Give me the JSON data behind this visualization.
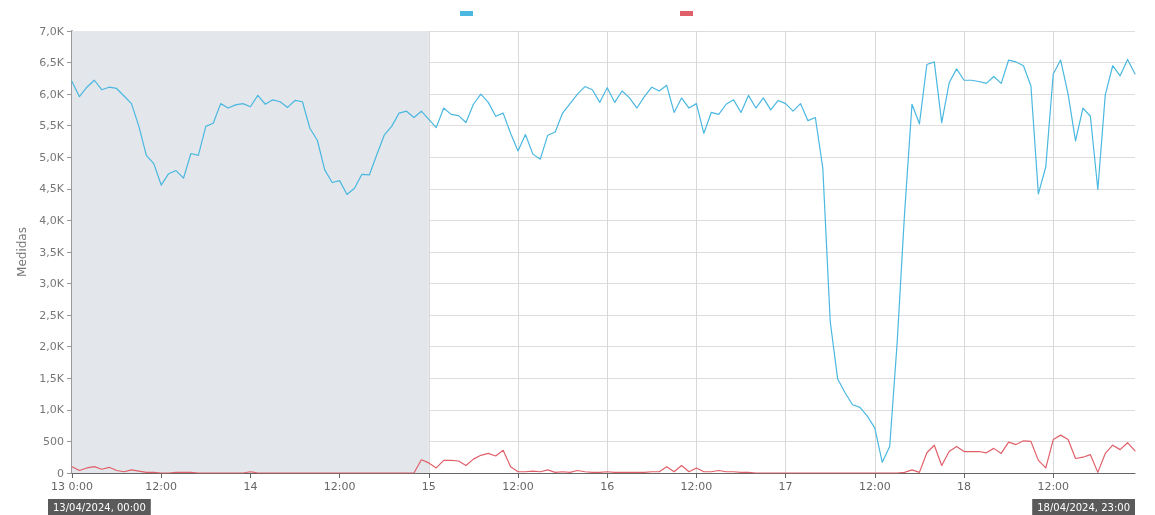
{
  "chart_data": {
    "type": "line",
    "ylabel": "Medidas",
    "x": [
      "2024-04-13T00:00",
      "2024-04-13T01:00",
      "2024-04-13T02:00",
      "2024-04-13T03:00",
      "2024-04-13T04:00",
      "2024-04-13T05:00",
      "2024-04-13T06:00",
      "2024-04-13T07:00",
      "2024-04-13T08:00",
      "2024-04-13T09:00",
      "2024-04-13T10:00",
      "2024-04-13T11:00",
      "2024-04-13T12:00",
      "2024-04-13T13:00",
      "2024-04-13T14:00",
      "2024-04-13T15:00",
      "2024-04-13T16:00",
      "2024-04-13T17:00",
      "2024-04-13T18:00",
      "2024-04-13T19:00",
      "2024-04-13T20:00",
      "2024-04-13T21:00",
      "2024-04-13T22:00",
      "2024-04-13T23:00",
      "2024-04-14T00:00",
      "2024-04-14T01:00",
      "2024-04-14T02:00",
      "2024-04-14T03:00",
      "2024-04-14T04:00",
      "2024-04-14T05:00",
      "2024-04-14T06:00",
      "2024-04-14T07:00",
      "2024-04-14T08:00",
      "2024-04-14T09:00",
      "2024-04-14T10:00",
      "2024-04-14T11:00",
      "2024-04-14T12:00",
      "2024-04-14T13:00",
      "2024-04-14T14:00",
      "2024-04-14T15:00",
      "2024-04-14T16:00",
      "2024-04-14T17:00",
      "2024-04-14T18:00",
      "2024-04-14T19:00",
      "2024-04-14T20:00",
      "2024-04-14T21:00",
      "2024-04-14T22:00",
      "2024-04-14T23:00",
      "2024-04-15T00:00",
      "2024-04-15T01:00",
      "2024-04-15T02:00",
      "2024-04-15T03:00",
      "2024-04-15T04:00",
      "2024-04-15T05:00",
      "2024-04-15T06:00",
      "2024-04-15T07:00",
      "2024-04-15T08:00",
      "2024-04-15T09:00",
      "2024-04-15T10:00",
      "2024-04-15T11:00",
      "2024-04-15T12:00",
      "2024-04-15T13:00",
      "2024-04-15T14:00",
      "2024-04-15T15:00",
      "2024-04-15T16:00",
      "2024-04-15T17:00",
      "2024-04-15T18:00",
      "2024-04-15T19:00",
      "2024-04-15T20:00",
      "2024-04-15T21:00",
      "2024-04-15T22:00",
      "2024-04-15T23:00",
      "2024-04-16T00:00",
      "2024-04-16T01:00",
      "2024-04-16T02:00",
      "2024-04-16T03:00",
      "2024-04-16T04:00",
      "2024-04-16T05:00",
      "2024-04-16T06:00",
      "2024-04-16T07:00",
      "2024-04-16T08:00",
      "2024-04-16T09:00",
      "2024-04-16T10:00",
      "2024-04-16T11:00",
      "2024-04-16T12:00",
      "2024-04-16T13:00",
      "2024-04-16T14:00",
      "2024-04-16T15:00",
      "2024-04-16T16:00",
      "2024-04-16T17:00",
      "2024-04-16T18:00",
      "2024-04-16T19:00",
      "2024-04-16T20:00",
      "2024-04-16T21:00",
      "2024-04-16T22:00",
      "2024-04-16T23:00",
      "2024-04-17T00:00",
      "2024-04-17T01:00",
      "2024-04-17T02:00",
      "2024-04-17T03:00",
      "2024-04-17T04:00",
      "2024-04-17T05:00",
      "2024-04-17T06:00",
      "2024-04-17T07:00",
      "2024-04-17T08:00",
      "2024-04-17T09:00",
      "2024-04-17T10:00",
      "2024-04-17T11:00",
      "2024-04-17T12:00",
      "2024-04-17T13:00",
      "2024-04-17T14:00",
      "2024-04-17T15:00",
      "2024-04-17T16:00",
      "2024-04-17T17:00",
      "2024-04-17T18:00",
      "2024-04-17T19:00",
      "2024-04-17T20:00",
      "2024-04-17T21:00",
      "2024-04-17T22:00",
      "2024-04-17T23:00",
      "2024-04-18T00:00",
      "2024-04-18T01:00",
      "2024-04-18T02:00",
      "2024-04-18T03:00",
      "2024-04-18T04:00",
      "2024-04-18T05:00",
      "2024-04-18T06:00",
      "2024-04-18T07:00",
      "2024-04-18T08:00",
      "2024-04-18T09:00",
      "2024-04-18T10:00",
      "2024-04-18T11:00",
      "2024-04-18T12:00",
      "2024-04-18T13:00",
      "2024-04-18T14:00",
      "2024-04-18T15:00",
      "2024-04-18T16:00",
      "2024-04-18T17:00",
      "2024-04-18T18:00",
      "2024-04-18T19:00",
      "2024-04-18T20:00",
      "2024-04-18T21:00",
      "2024-04-18T22:00",
      "2024-04-18T23:00"
    ],
    "series": [
      {
        "color": "#4ab8e0",
        "values": [
          6200,
          5960,
          6110,
          6220,
          6070,
          6110,
          6090,
          5970,
          5850,
          5490,
          5030,
          4900,
          4560,
          4740,
          4790,
          4670,
          5060,
          5030,
          5490,
          5540,
          5850,
          5780,
          5830,
          5850,
          5800,
          5980,
          5840,
          5910,
          5880,
          5790,
          5900,
          5880,
          5460,
          5270,
          4800,
          4600,
          4630,
          4410,
          4510,
          4730,
          4720,
          5040,
          5350,
          5490,
          5700,
          5730,
          5630,
          5730,
          5600,
          5470,
          5780,
          5680,
          5660,
          5550,
          5840,
          6000,
          5870,
          5650,
          5700,
          5380,
          5100,
          5360,
          5050,
          4970,
          5350,
          5400,
          5700,
          5850,
          6000,
          6120,
          6070,
          5870,
          6100,
          5870,
          6050,
          5940,
          5780,
          5960,
          6110,
          6050,
          6140,
          5710,
          5940,
          5780,
          5850,
          5380,
          5710,
          5680,
          5840,
          5910,
          5710,
          5980,
          5780,
          5940,
          5750,
          5900,
          5850,
          5730,
          5850,
          5580,
          5630,
          4830,
          2400,
          1490,
          1270,
          1080,
          1040,
          900,
          710,
          170,
          420,
          2060,
          4110,
          5840,
          5530,
          6470,
          6510,
          5550,
          6180,
          6400,
          6220,
          6220,
          6200,
          6170,
          6280,
          6170,
          6540,
          6510,
          6450,
          6130,
          4420,
          4850,
          6320,
          6540,
          6000,
          5260,
          5780,
          5650,
          4490,
          5990,
          6450,
          6290,
          6550,
          6320
        ]
      },
      {
        "color": "#e0606a",
        "values": [
          100,
          40,
          80,
          100,
          60,
          90,
          40,
          20,
          50,
          30,
          10,
          10,
          0,
          0,
          10,
          10,
          10,
          0,
          0,
          0,
          0,
          0,
          0,
          0,
          20,
          0,
          0,
          0,
          0,
          0,
          0,
          0,
          0,
          0,
          0,
          0,
          0,
          0,
          0,
          0,
          0,
          0,
          0,
          0,
          0,
          0,
          0,
          210,
          160,
          80,
          200,
          200,
          190,
          120,
          220,
          280,
          310,
          270,
          360,
          100,
          20,
          20,
          30,
          20,
          50,
          10,
          20,
          10,
          40,
          20,
          10,
          10,
          20,
          10,
          10,
          10,
          10,
          10,
          20,
          20,
          100,
          20,
          120,
          20,
          80,
          20,
          20,
          40,
          20,
          20,
          10,
          10,
          0,
          0,
          0,
          0,
          0,
          0,
          0,
          0,
          0,
          0,
          0,
          0,
          0,
          0,
          0,
          0,
          0,
          0,
          0,
          0,
          10,
          50,
          10,
          320,
          440,
          120,
          340,
          420,
          340,
          340,
          340,
          320,
          390,
          310,
          490,
          450,
          510,
          500,
          200,
          80,
          530,
          600,
          530,
          230,
          250,
          290,
          10,
          310,
          440,
          370,
          480,
          350
        ]
      }
    ],
    "xlim": [
      "2024-04-13T00:00",
      "2024-04-18T23:00"
    ],
    "xticks": [
      {
        "value": "2024-04-13T00:00",
        "label": "13 0:00"
      },
      {
        "value": "2024-04-13T12:00",
        "label": "12:00"
      },
      {
        "value": "2024-04-14T00:00",
        "label": "14"
      },
      {
        "value": "2024-04-14T12:00",
        "label": "12:00"
      },
      {
        "value": "2024-04-15T00:00",
        "label": "15"
      },
      {
        "value": "2024-04-15T12:00",
        "label": "12:00"
      },
      {
        "value": "2024-04-16T00:00",
        "label": "16"
      },
      {
        "value": "2024-04-16T12:00",
        "label": "12:00"
      },
      {
        "value": "2024-04-17T00:00",
        "label": "17"
      },
      {
        "value": "2024-04-17T12:00",
        "label": "12:00"
      },
      {
        "value": "2024-04-18T00:00",
        "label": "18"
      },
      {
        "value": "2024-04-18T12:00",
        "label": "12:00"
      }
    ],
    "ylim": [
      0,
      7000
    ],
    "yticks": [
      0,
      500,
      {
        "value": 1000,
        "label": "1,0K"
      },
      {
        "value": 1500,
        "label": "1,5K"
      },
      {
        "value": 2000,
        "label": "2,0K"
      },
      {
        "value": 2500,
        "label": "2,5K"
      },
      {
        "value": 3000,
        "label": "3,0K"
      },
      {
        "value": 3500,
        "label": "3,5K"
      },
      {
        "value": 4000,
        "label": "4,0K"
      },
      {
        "value": 4500,
        "label": "4,5K"
      },
      {
        "value": 5000,
        "label": "5,0K"
      },
      {
        "value": 5500,
        "label": "5,5K"
      },
      {
        "value": 6000,
        "label": "6,0K"
      },
      {
        "value": 6500,
        "label": "6,5K"
      },
      {
        "value": 7000,
        "label": "7,0K"
      }
    ],
    "bands": [
      {
        "axis": "x",
        "from": "2024-04-13T00:00",
        "to": "2024-04-15T00:00",
        "color": "#e3e6ea"
      }
    ],
    "annotations": [
      "13/04/2024, 00:00",
      "18/04/2024, 23:00"
    ],
    "grid": true,
    "marker": "none",
    "line_style": "solid"
  }
}
